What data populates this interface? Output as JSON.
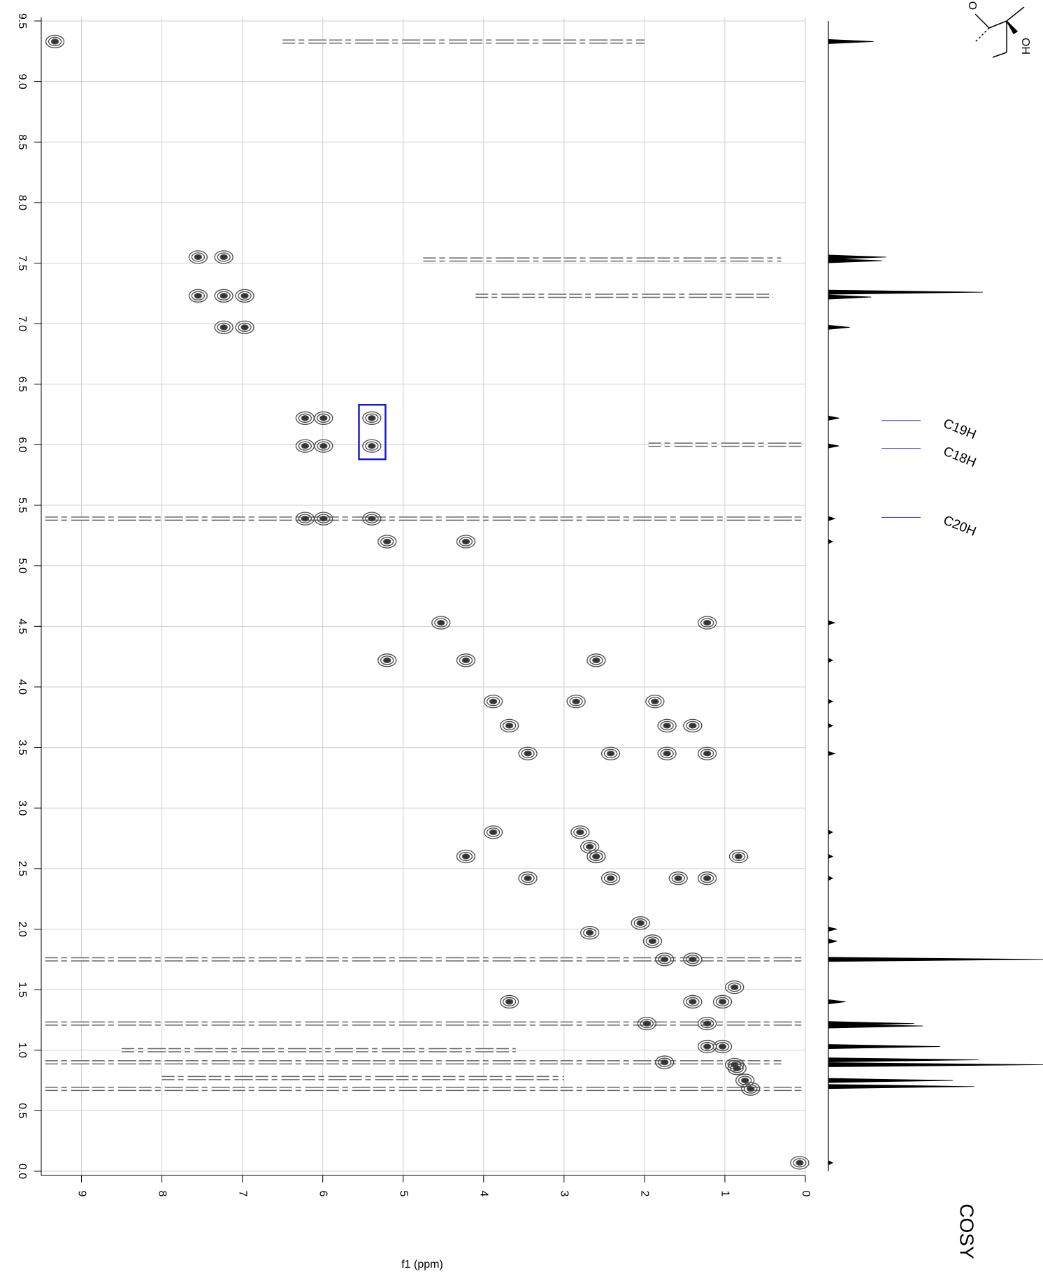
{
  "chart_data": {
    "type": "contour",
    "xlabel": "f1 (ppm)",
    "side_label": "COSY",
    "structure_labels": [
      "O",
      "OH"
    ],
    "xlim": [
      9.5,
      0
    ],
    "ylim": [
      0,
      9.5
    ],
    "xticks": [
      9,
      8,
      7,
      6,
      5,
      4,
      3,
      2,
      1,
      0
    ],
    "yticks": [
      {
        "value": 0,
        "label": "0.0"
      },
      0.5,
      {
        "value": 1,
        "label": "1.0"
      },
      1.5,
      {
        "value": 2,
        "label": "2.0"
      },
      2.5,
      {
        "value": 3,
        "label": "3.0"
      },
      3.5,
      {
        "value": 4,
        "label": "4.0"
      },
      4.5,
      {
        "value": 5,
        "label": "5.0"
      },
      5.5,
      {
        "value": 6,
        "label": "6.0"
      },
      6.5,
      {
        "value": 7,
        "label": "7.0"
      },
      7.5,
      {
        "value": 8,
        "label": "8.0"
      },
      8.5,
      {
        "value": 9,
        "label": "9.0"
      },
      9.5
    ],
    "grid": true,
    "color": "#4a4a4a",
    "peaks": {
      "x": [
        9.33,
        7.55,
        7.23,
        6.97,
        6.22,
        5.99,
        5.39,
        5.2,
        4.53,
        4.22,
        3.88,
        3.68,
        3.45,
        2.8,
        2.68,
        2.6,
        2.42,
        2.05,
        1.9,
        1.75,
        1.4,
        1.22,
        1.03,
        0.88,
        0.75,
        0.68,
        0.07,
        7.23,
        7.55,
        6.97,
        7.23,
        5.99,
        6.22,
        5.39,
        5.39,
        6.22,
        5.99,
        4.22,
        5.2,
        1.22,
        2.6,
        4.22,
        2.85,
        1.87,
        3.88,
        1.72,
        1.4,
        2.42,
        1.72,
        1.22,
        3.45,
        0.83,
        1.58,
        1.22,
        2.68,
        3.68,
        2.6,
        1.97,
        0.85,
        1.4,
        0.88,
        1.75,
        1.03,
        1.22
      ],
      "y": [
        9.33,
        7.55,
        7.23,
        6.97,
        6.22,
        5.99,
        5.39,
        5.2,
        4.53,
        4.22,
        3.88,
        3.68,
        3.45,
        2.8,
        2.68,
        2.6,
        2.42,
        2.05,
        1.9,
        1.75,
        1.4,
        1.22,
        1.03,
        0.88,
        0.75,
        0.68,
        0.07,
        7.55,
        7.23,
        7.23,
        6.97,
        6.22,
        5.99,
        6.22,
        5.99,
        5.39,
        5.39,
        5.2,
        4.22,
        4.53,
        4.22,
        2.6,
        3.88,
        3.88,
        2.8,
        3.68,
        3.68,
        3.45,
        3.45,
        3.45,
        2.42,
        2.6,
        2.42,
        2.42,
        1.97,
        1.4,
        2.6,
        1.22,
        0.85,
        1.75,
        1.52,
        0.9,
        1.4,
        1.03
      ]
    },
    "ridges": [
      {
        "y": 9.33,
        "x": [
          6.5,
          2.0
        ]
      },
      {
        "y": 7.53,
        "x": [
          4.75,
          0.3
        ]
      },
      {
        "y": 7.23,
        "x": [
          4.1,
          0.4
        ]
      },
      {
        "y": 6.0,
        "x": [
          1.95,
          0.05
        ]
      },
      {
        "y": 5.39,
        "x": [
          9.45,
          0.05
        ]
      },
      {
        "y": 1.75,
        "x": [
          9.45,
          0.05
        ]
      },
      {
        "y": 1.22,
        "x": [
          9.45,
          0.05
        ]
      },
      {
        "y": 1.0,
        "x": [
          8.5,
          3.6
        ]
      },
      {
        "y": 0.9,
        "x": [
          9.45,
          0.3
        ]
      },
      {
        "y": 0.77,
        "x": [
          8.0,
          3.0
        ]
      },
      {
        "y": 0.68,
        "x": [
          9.45,
          0.05
        ]
      }
    ],
    "highlight": {
      "x": [
        5.55,
        5.22
      ],
      "y": [
        5.88,
        6.33
      ],
      "color": "#1a1ad0"
    },
    "annotations": [
      {
        "text": "C19H",
        "y": 6.2
      },
      {
        "text": "C18H",
        "y": 5.97
      },
      {
        "text": "C20H",
        "y": 5.4
      }
    ],
    "annotation_color": "#3a3ae0",
    "projection": {
      "x": [
        9.33,
        7.55,
        7.52,
        7.26,
        7.22,
        6.97,
        6.22,
        5.99,
        5.39,
        5.2,
        4.53,
        4.22,
        3.88,
        3.68,
        3.45,
        2.8,
        2.6,
        2.42,
        2.0,
        1.9,
        1.75,
        1.4,
        1.22,
        1.2,
        1.03,
        0.92,
        0.88,
        0.75,
        0.7,
        0.07
      ],
      "values": [
        21,
        27,
        25,
        72,
        20,
        10,
        5,
        5,
        3,
        2,
        3,
        2,
        2,
        2,
        3,
        2,
        2,
        2,
        4,
        4,
        100,
        8,
        40,
        44,
        52,
        70,
        100,
        58,
        68,
        2
      ]
    }
  }
}
